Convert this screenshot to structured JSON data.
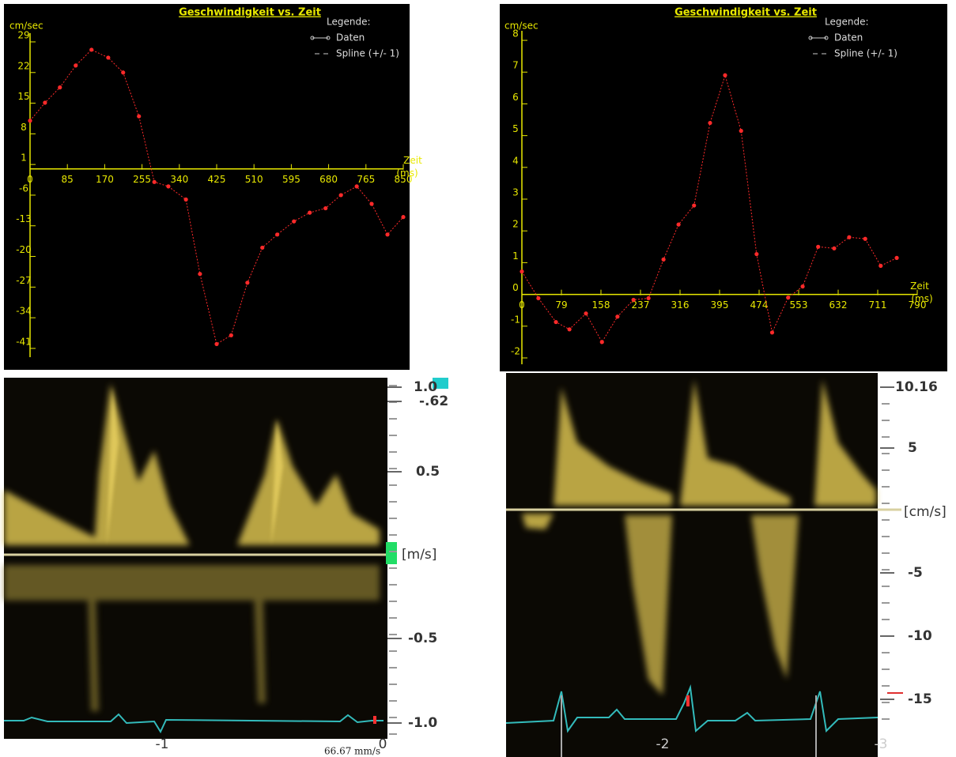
{
  "chart_data": [
    {
      "type": "line",
      "title": "Geschwindigkeit vs. Zeit",
      "y_label": "cm/sec",
      "x_label": "Zeit",
      "x_unit": "(ms)",
      "legend_title": "Legende:",
      "spline_label": "Spline (+/- 1)",
      "axis_color": "#e8e800",
      "x": [
        0,
        34,
        68,
        104,
        140,
        178,
        212,
        248,
        283,
        315,
        355,
        387,
        425,
        458,
        495,
        529,
        563,
        601,
        637,
        673,
        708,
        744,
        778,
        814,
        850
      ],
      "series": [
        {
          "name": "Daten",
          "color": "#ff2a2a",
          "values": [
            11,
            15.1,
            18.6,
            23.6,
            27.2,
            25.4,
            22,
            12,
            -3,
            -4,
            -7,
            -24,
            -40,
            -38,
            -26,
            -18,
            -15,
            -12,
            -10,
            -9,
            -6,
            -4,
            -8,
            -15,
            -11
          ]
        }
      ],
      "xlim": [
        0,
        850
      ],
      "ylim": [
        -43,
        31
      ],
      "xticks": [
        0,
        85,
        170,
        255,
        340,
        425,
        510,
        595,
        680,
        765,
        850
      ],
      "yticks": [
        29,
        22,
        15,
        8,
        1,
        -6,
        -13,
        -20,
        -27,
        -34,
        -41
      ]
    },
    {
      "type": "line",
      "title": "Geschwindigkeit vs. Zeit",
      "y_label": "cm/sec",
      "x_label": "Zeit",
      "x_unit": "(ms)",
      "legend_title": "Legende:",
      "spline_label": "Spline (+/- 1)",
      "axis_color": "#e8e800",
      "x": [
        0,
        33,
        68,
        95,
        128,
        160,
        191,
        223,
        253,
        283,
        313,
        344,
        376,
        406,
        438,
        469,
        500,
        532,
        561,
        592,
        624,
        654,
        686,
        717,
        749
      ],
      "series": [
        {
          "name": "Daten",
          "color": "#ff2a2a",
          "values": [
            0.72,
            -0.12,
            -0.87,
            -1.1,
            -0.6,
            -1.5,
            -0.7,
            -0.17,
            -0.12,
            1.1,
            2.2,
            2.8,
            5.4,
            6.9,
            5.15,
            1.27,
            -1.2,
            -0.1,
            0.25,
            1.5,
            1.45,
            1.8,
            1.75,
            0.9,
            1.15
          ]
        }
      ],
      "xlim": [
        0,
        790
      ],
      "ylim": [
        -2.2,
        8.3
      ],
      "xticks": [
        0,
        79,
        158,
        237,
        316,
        395,
        474,
        553,
        632,
        711,
        790
      ],
      "yticks": [
        8,
        7,
        6,
        5,
        4,
        3,
        2,
        1,
        0,
        -1,
        -2
      ]
    }
  ],
  "doppler": [
    {
      "scale_labels": [
        "1.0",
        "-.62",
        "0.5",
        "-0.5",
        "-1.0"
      ],
      "unit": "[m/s]",
      "time_labels": [
        "-1",
        "0"
      ],
      "sweep_speed": "66.67 mm/s"
    },
    {
      "scale_labels": [
        "10.16",
        "5",
        "-5",
        "-10",
        "-15"
      ],
      "unit": "[cm/s]",
      "time_labels": [
        "-2",
        "-3"
      ]
    }
  ]
}
